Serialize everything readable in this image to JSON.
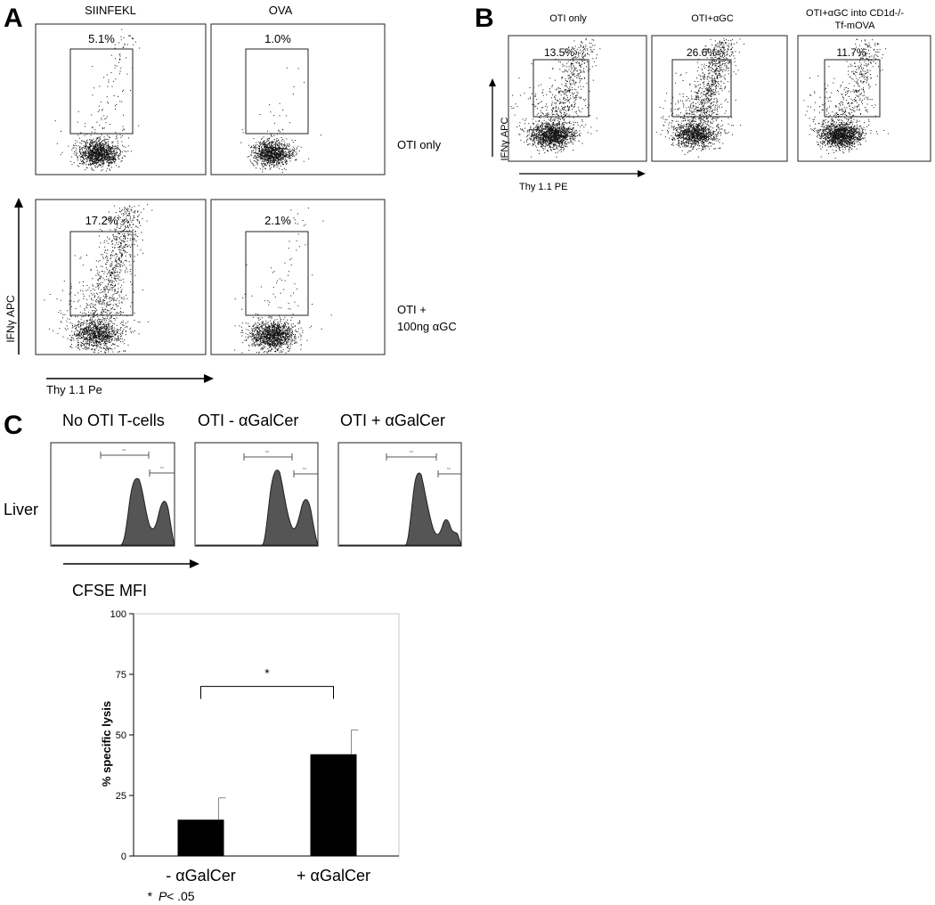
{
  "panel_letters": {
    "a": "A",
    "b": "B",
    "c": "C"
  },
  "panel_a": {
    "col_headers": [
      "SIINFEKL",
      "OVA"
    ],
    "row_labels": [
      [
        "OTI only"
      ],
      [
        "OTI +",
        "100ng αGC"
      ]
    ],
    "percents": [
      [
        "5.1%",
        "1.0%"
      ],
      [
        "17.2%",
        "2.1%"
      ]
    ],
    "y_axis_label": "IFNγ APC",
    "x_axis_label": "Thy 1.1 Pe"
  },
  "panel_b": {
    "col_headers": [
      [
        "OTI only"
      ],
      [
        "OTI+αGC"
      ],
      [
        "OTI+αGC into CD1d-/-",
        "Tf-mOVA"
      ]
    ],
    "percents": [
      "13.5%",
      "26.6%",
      "11.7%"
    ],
    "y_axis_label": "IFNγ APC",
    "x_axis_label": "Thy 1.1 PE"
  },
  "panel_c": {
    "col_headers": [
      "No OTI T-cells",
      "OTI - αGalCer",
      "OTI + αGalCer"
    ],
    "row_label": "Liver",
    "gate_labels": [
      "M2",
      "M1"
    ],
    "x_axis_label": "CFSE MFI",
    "significance_star": "*",
    "footnote_star": "*",
    "footnote_p": "P",
    "footnote_rest": " < .05"
  },
  "chart_data": [
    {
      "type": "bar",
      "categories": [
        "- αGalCer",
        "+ αGalCer"
      ],
      "values": [
        15,
        42
      ],
      "error": [
        9,
        10
      ],
      "ylabel": "% specific lysis",
      "ylim": [
        0,
        100
      ],
      "yticks": [
        0,
        25,
        50,
        75,
        100
      ],
      "bar_color": "#000000",
      "significance": {
        "between": [
          0,
          1
        ],
        "label": "*"
      }
    }
  ]
}
